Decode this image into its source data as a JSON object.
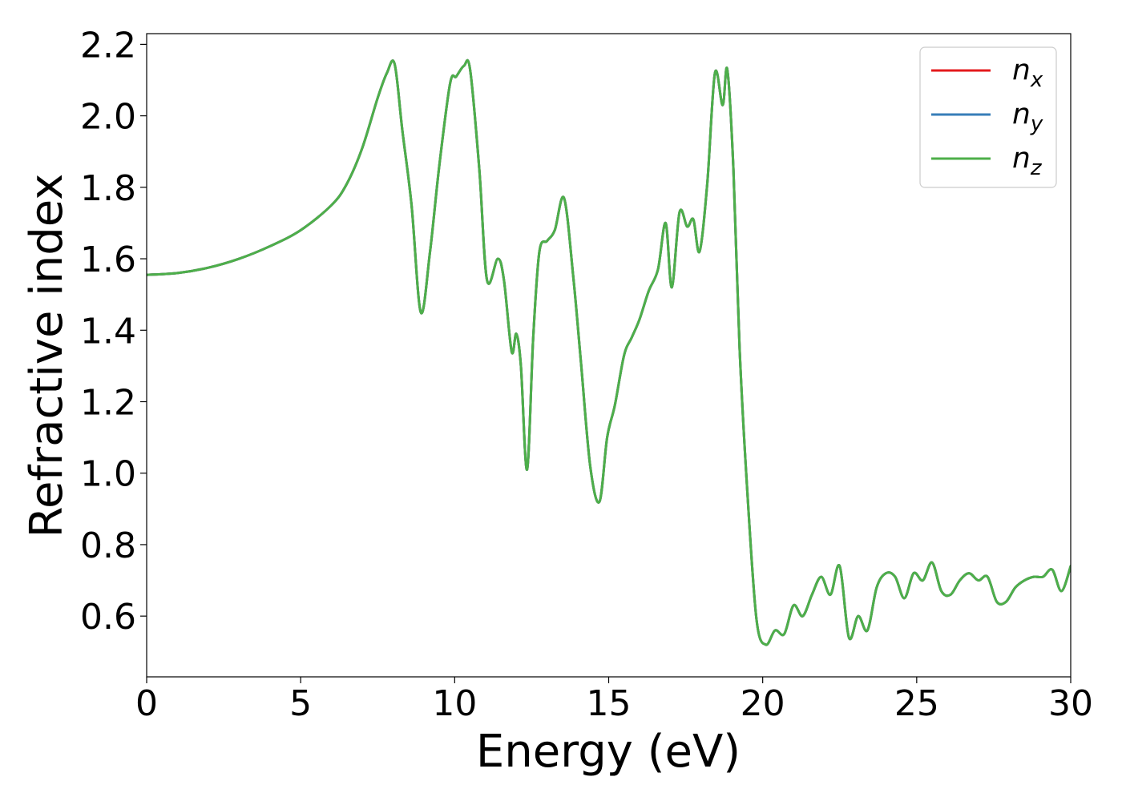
{
  "chart_data": {
    "type": "line",
    "xlabel": "Energy (eV)",
    "ylabel": "Refractive index",
    "xlim": [
      0,
      30
    ],
    "ylim": [
      0.43,
      2.23
    ],
    "xticks": [
      0,
      5,
      10,
      15,
      20,
      25,
      30
    ],
    "xtick_labels": [
      "0",
      "5",
      "10",
      "15",
      "20",
      "25",
      "30"
    ],
    "yticks": [
      0.6,
      0.8,
      1.0,
      1.2,
      1.4,
      1.6,
      1.8,
      2.0,
      2.2
    ],
    "ytick_labels": [
      "0.6",
      "0.8",
      "1.0",
      "1.2",
      "1.4",
      "1.6",
      "1.8",
      "2.0",
      "2.2"
    ],
    "grid": false,
    "legend_position": "top-right",
    "x": [
      0,
      1,
      2,
      3,
      4,
      5,
      6,
      6.5,
      7,
      7.5,
      7.8,
      8.05,
      8.3,
      8.6,
      8.9,
      9.2,
      9.5,
      9.85,
      10.05,
      10.3,
      10.5,
      10.8,
      11.05,
      11.4,
      11.6,
      11.85,
      12.0,
      12.15,
      12.35,
      12.55,
      12.75,
      13.0,
      13.25,
      13.55,
      13.85,
      14.1,
      14.4,
      14.7,
      14.95,
      15.2,
      15.5,
      15.75,
      16.0,
      16.3,
      16.6,
      16.85,
      17.05,
      17.3,
      17.55,
      17.75,
      17.95,
      18.2,
      18.45,
      18.7,
      18.85,
      19.05,
      19.25,
      19.5,
      19.8,
      20.1,
      20.4,
      20.7,
      21.0,
      21.3,
      21.6,
      21.9,
      22.2,
      22.5,
      22.8,
      23.1,
      23.4,
      23.7,
      24.0,
      24.3,
      24.6,
      24.9,
      25.2,
      25.5,
      25.8,
      26.1,
      26.4,
      26.7,
      27.0,
      27.3,
      27.6,
      27.9,
      28.2,
      28.5,
      28.8,
      29.1,
      29.4,
      29.7,
      30.0
    ],
    "series": [
      {
        "name": "n_x",
        "label_base": "n",
        "label_sub": "x",
        "color": "#e41a1c",
        "values": [
          1.555,
          1.56,
          1.575,
          1.6,
          1.635,
          1.68,
          1.75,
          1.81,
          1.91,
          2.05,
          2.12,
          2.145,
          1.96,
          1.75,
          1.45,
          1.62,
          1.86,
          2.09,
          2.11,
          2.14,
          2.13,
          1.85,
          1.54,
          1.6,
          1.54,
          1.34,
          1.39,
          1.3,
          1.01,
          1.38,
          1.62,
          1.65,
          1.68,
          1.77,
          1.55,
          1.31,
          1.02,
          0.92,
          1.1,
          1.19,
          1.33,
          1.38,
          1.43,
          1.51,
          1.57,
          1.7,
          1.52,
          1.73,
          1.69,
          1.71,
          1.62,
          1.81,
          2.12,
          2.03,
          2.13,
          1.85,
          1.35,
          0.95,
          0.59,
          0.52,
          0.56,
          0.55,
          0.63,
          0.6,
          0.66,
          0.71,
          0.66,
          0.74,
          0.54,
          0.6,
          0.56,
          0.68,
          0.72,
          0.71,
          0.65,
          0.72,
          0.7,
          0.75,
          0.67,
          0.66,
          0.7,
          0.72,
          0.7,
          0.71,
          0.64,
          0.64,
          0.68,
          0.7,
          0.71,
          0.71,
          0.73,
          0.67,
          0.74
        ]
      },
      {
        "name": "n_y",
        "label_base": "n",
        "label_sub": "y",
        "color": "#377eb8",
        "values": [
          1.555,
          1.56,
          1.575,
          1.6,
          1.635,
          1.68,
          1.75,
          1.81,
          1.91,
          2.05,
          2.12,
          2.145,
          1.96,
          1.75,
          1.45,
          1.62,
          1.86,
          2.09,
          2.11,
          2.14,
          2.13,
          1.85,
          1.54,
          1.6,
          1.54,
          1.34,
          1.39,
          1.3,
          1.01,
          1.38,
          1.62,
          1.65,
          1.68,
          1.77,
          1.55,
          1.31,
          1.02,
          0.92,
          1.1,
          1.19,
          1.33,
          1.38,
          1.43,
          1.51,
          1.57,
          1.7,
          1.52,
          1.73,
          1.69,
          1.71,
          1.62,
          1.81,
          2.12,
          2.03,
          2.13,
          1.85,
          1.35,
          0.95,
          0.59,
          0.52,
          0.56,
          0.55,
          0.63,
          0.6,
          0.66,
          0.71,
          0.66,
          0.74,
          0.54,
          0.6,
          0.56,
          0.68,
          0.72,
          0.71,
          0.65,
          0.72,
          0.7,
          0.75,
          0.67,
          0.66,
          0.7,
          0.72,
          0.7,
          0.71,
          0.64,
          0.64,
          0.68,
          0.7,
          0.71,
          0.71,
          0.73,
          0.67,
          0.74
        ]
      },
      {
        "name": "n_z",
        "label_base": "n",
        "label_sub": "z",
        "color": "#4daf4a",
        "values": [
          1.555,
          1.56,
          1.575,
          1.6,
          1.635,
          1.68,
          1.75,
          1.81,
          1.91,
          2.05,
          2.12,
          2.145,
          1.96,
          1.75,
          1.45,
          1.62,
          1.86,
          2.09,
          2.11,
          2.14,
          2.13,
          1.85,
          1.54,
          1.6,
          1.54,
          1.34,
          1.39,
          1.3,
          1.01,
          1.38,
          1.62,
          1.65,
          1.68,
          1.77,
          1.55,
          1.31,
          1.02,
          0.92,
          1.1,
          1.19,
          1.33,
          1.38,
          1.43,
          1.51,
          1.57,
          1.7,
          1.52,
          1.73,
          1.69,
          1.71,
          1.62,
          1.81,
          2.12,
          2.03,
          2.13,
          1.85,
          1.35,
          0.95,
          0.59,
          0.52,
          0.56,
          0.55,
          0.63,
          0.6,
          0.66,
          0.71,
          0.66,
          0.74,
          0.54,
          0.6,
          0.56,
          0.68,
          0.72,
          0.71,
          0.65,
          0.72,
          0.7,
          0.75,
          0.67,
          0.66,
          0.7,
          0.72,
          0.7,
          0.71,
          0.64,
          0.64,
          0.68,
          0.7,
          0.71,
          0.71,
          0.73,
          0.67,
          0.74
        ]
      }
    ]
  }
}
